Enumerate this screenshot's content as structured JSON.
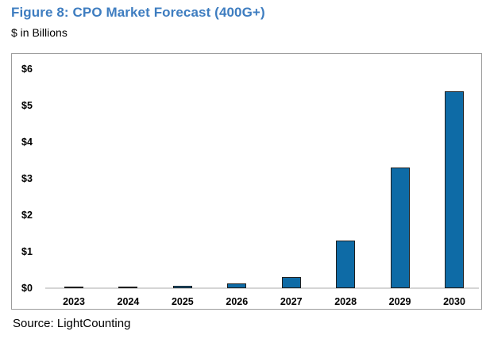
{
  "header": {
    "title": "Figure 8: CPO Market Forecast (400G+)",
    "subtitle": "$ in Billions"
  },
  "footer": {
    "source": "Source: LightCounting"
  },
  "colors": {
    "title_blue": "#3E7DC0",
    "bar_fill": "#0E6BA6",
    "bar_border": "#1F1F1F",
    "frame_border": "#9C9C9C",
    "axis_line": "#D5D5D5",
    "text": "#000000"
  },
  "chart_data": {
    "type": "bar",
    "title": "Figure 8: CPO Market Forecast (400G+)",
    "units_label": "$ in Billions",
    "xlabel": "",
    "ylabel": "$ in Billions",
    "categories": [
      "2023",
      "2024",
      "2025",
      "2026",
      "2027",
      "2028",
      "2029",
      "2030"
    ],
    "values": [
      0.02,
      0.04,
      0.07,
      0.12,
      0.3,
      1.3,
      3.3,
      5.4
    ],
    "y_ticks": [
      {
        "value": 0,
        "label": "$0"
      },
      {
        "value": 1,
        "label": "$1"
      },
      {
        "value": 2,
        "label": "$2"
      },
      {
        "value": 3,
        "label": "$3"
      },
      {
        "value": 4,
        "label": "$4"
      },
      {
        "value": 5,
        "label": "$5"
      },
      {
        "value": 6,
        "label": "$6"
      }
    ],
    "ylim": [
      0,
      6
    ],
    "grid": false,
    "legend": false,
    "source": "Source: LightCounting"
  }
}
